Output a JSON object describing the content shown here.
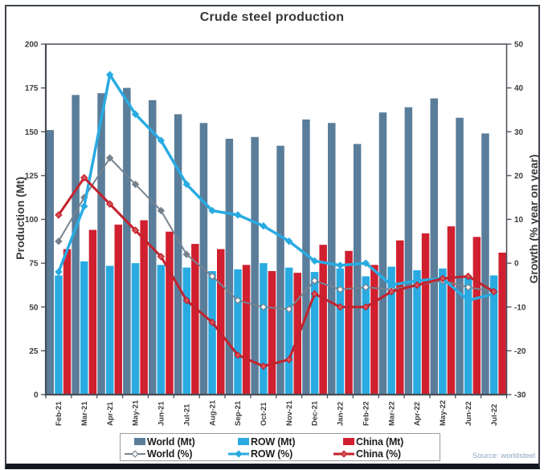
{
  "chart_data": {
    "type": "combo-bar-line",
    "title": "Crude steel production",
    "source_note": "Source: worldsteel",
    "grid": false,
    "legend_position": "bottom",
    "categories": [
      "Feb-21",
      "Mar-21",
      "Apr-21",
      "May-21",
      "Jun-21",
      "Jul-21",
      "Aug-21",
      "Sep-21",
      "Oct-21",
      "Nov-21",
      "Dec-21",
      "Jan-22",
      "Feb-22",
      "Mar-22",
      "Apr-22",
      "May-22",
      "Jun-22",
      "Jul-22"
    ],
    "left_axis": {
      "label": "Production (Mt)",
      "min": 0,
      "max": 200,
      "step": 25
    },
    "right_axis": {
      "label": "Growth (% year on year)",
      "min": -30,
      "max": 50,
      "step": 10
    },
    "bar_series": [
      {
        "name": "World (Mt)",
        "color": "#5a7d9a",
        "values": [
          151,
          171,
          172,
          175,
          168,
          160,
          155,
          146,
          147,
          142,
          157,
          155,
          143,
          161,
          164,
          169,
          158,
          149
        ]
      },
      {
        "name": "ROW (Mt)",
        "color": "#29abe2",
        "values": [
          68,
          76,
          73.5,
          75,
          74,
          72.5,
          70.5,
          71.5,
          75,
          72.5,
          70,
          72,
          67.5,
          73,
          71,
          72,
          67.5,
          68
        ]
      },
      {
        "name": "China (Mt)",
        "color": "#d02030",
        "values": [
          83,
          94,
          97,
          99.5,
          93,
          86,
          83,
          74,
          70.5,
          69.5,
          85.5,
          82,
          74,
          88,
          92,
          96,
          90,
          81
        ]
      }
    ],
    "line_series": [
      {
        "name": "World (%)",
        "color": "#76838f",
        "marker_fill": "#ffffff",
        "solid_markers_until": 6,
        "width": 2,
        "values": [
          5,
          15,
          24,
          18,
          12,
          2,
          -3,
          -8.5,
          -10,
          -10.5,
          -4,
          -6,
          -5.5,
          -6,
          -5,
          -4,
          -5.5,
          -6.5
        ]
      },
      {
        "name": "ROW (%)",
        "color": "#29abe2",
        "marker_fill": "#29abe2",
        "width": 3.5,
        "values": [
          -2,
          13,
          43,
          34,
          28,
          18,
          12,
          11,
          8.5,
          5,
          0.5,
          -0.5,
          0,
          -5,
          -4,
          -3.5,
          -8.5,
          -7
        ]
      },
      {
        "name": "China (%)",
        "color": "#c2222d",
        "marker_fill": "#d8535b",
        "width": 3,
        "values": [
          11,
          19.5,
          13.5,
          7.5,
          1.5,
          -8.5,
          -13.5,
          -21,
          -23.5,
          -22,
          -7,
          -10,
          -10,
          -6.5,
          -5,
          -3.5,
          -3,
          -6.5
        ]
      }
    ],
    "axis_color": "#474c54",
    "tick_label_color": "#3c3c3c"
  }
}
